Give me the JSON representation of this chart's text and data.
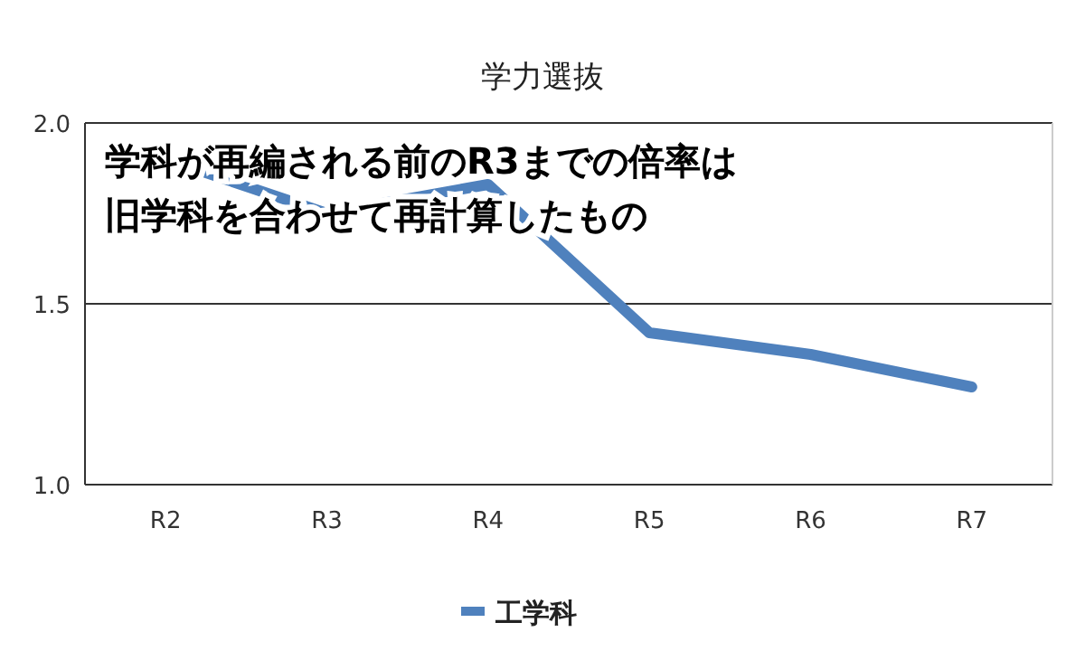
{
  "chart_data": {
    "type": "line",
    "title": "学力選抜",
    "categories": [
      "R2",
      "R3",
      "R4",
      "R5",
      "R6",
      "R7"
    ],
    "series": [
      {
        "name": "工学科",
        "color": "#4f81bd",
        "values": [
          1.9,
          1.75,
          1.83,
          1.42,
          1.36,
          1.27
        ]
      }
    ],
    "ylim": [
      1.0,
      2.0
    ],
    "yticks": [
      {
        "value": 1.0,
        "label": "1.0"
      },
      {
        "value": 1.5,
        "label": "1.5"
      },
      {
        "value": 2.0,
        "label": "2.0"
      }
    ],
    "grid": "y",
    "legend": "bottom",
    "marker": "none",
    "line_style": "solid",
    "annotations": [
      "学科が再編される前のR3までの倍率は",
      "旧学科を合わせて再計算したもの"
    ]
  }
}
